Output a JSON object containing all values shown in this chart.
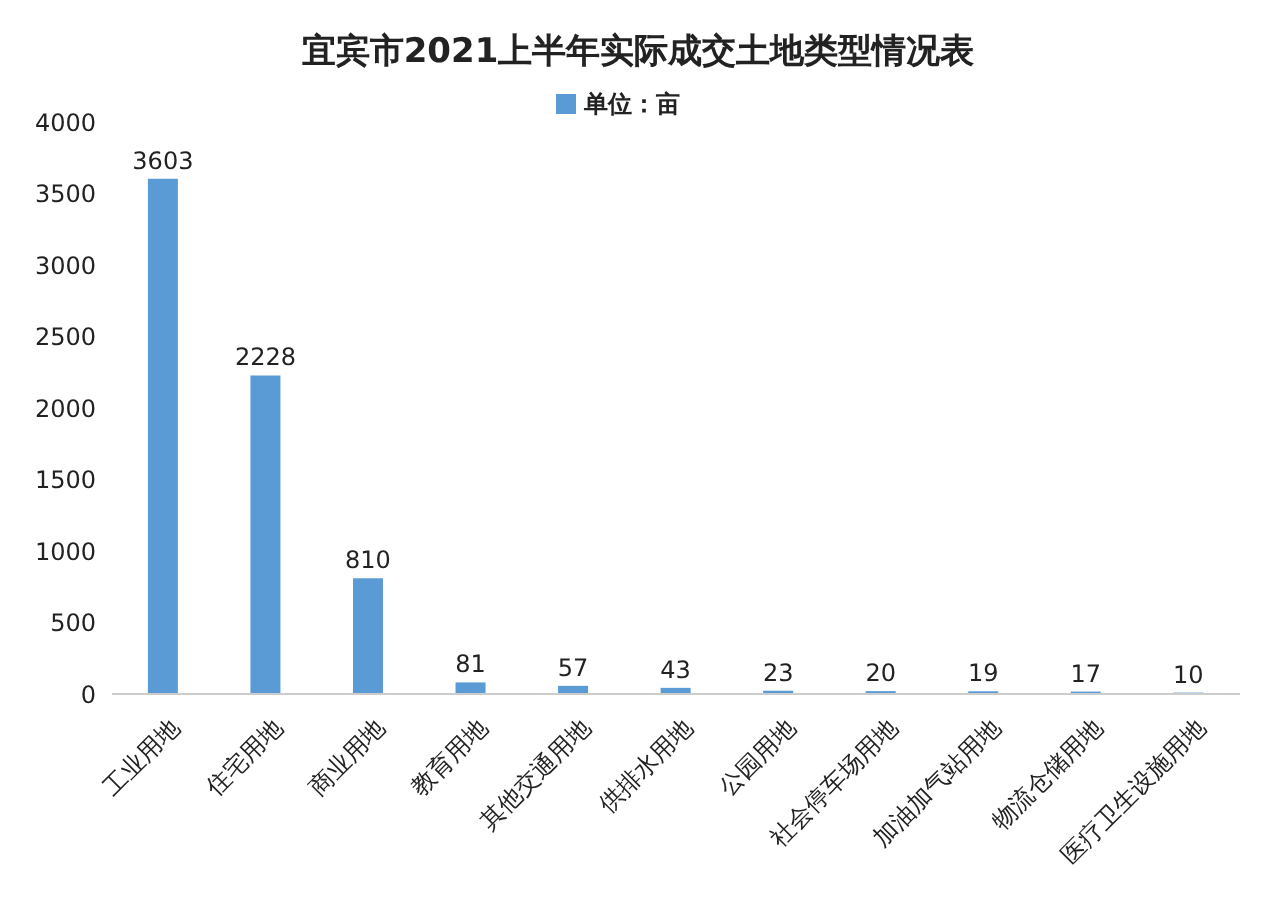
{
  "chart_data": {
    "type": "bar",
    "title": "宜宾市2021上半年实际成交土地类型情况表",
    "categories": [
      "工业用地",
      "住宅用地",
      "商业用地",
      "教育用地",
      "其他交通用地",
      "供排水用地",
      "公园用地",
      "社会停车场用地",
      "加油加气站用地",
      "物流仓储用地",
      "医疗卫生设施用地"
    ],
    "series": [
      {
        "name": "单位：亩",
        "color": "#5b9bd5",
        "values": [
          3603,
          2228,
          810,
          81,
          57,
          43,
          23,
          20,
          19,
          17,
          10
        ]
      }
    ],
    "ylim": [
      0,
      4000
    ],
    "yticks": [
      0,
      500,
      1000,
      1500,
      2000,
      2500,
      3000,
      3500,
      4000
    ],
    "grid": false,
    "legend": "top",
    "data_labels": true
  }
}
